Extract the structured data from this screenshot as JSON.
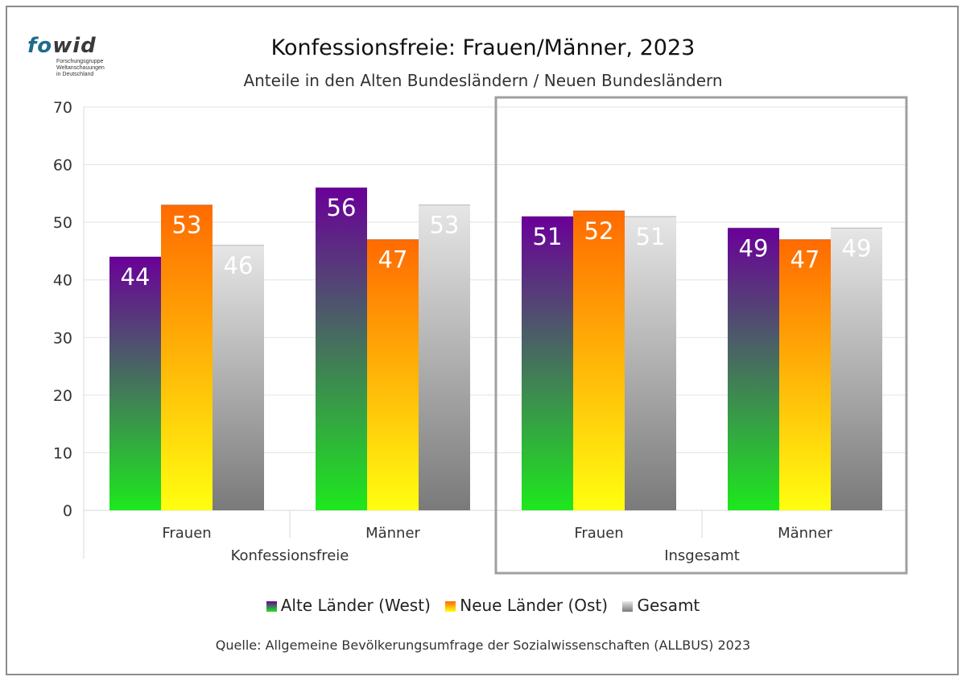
{
  "logo": {
    "word_a": "fo",
    "word_b": "wid",
    "sub_lines": [
      "Forschungsgruppe",
      "Weltanschauungen",
      "in Deutschland"
    ]
  },
  "colors": {
    "west_top": "#6a0099",
    "west_bottom": "#1ee81e",
    "ost_top": "#ff6a00",
    "ost_bottom": "#ffff10",
    "gesamt_top": "#e6e6e6",
    "gesamt_bottom": "#7a7a7a",
    "grid": "#e3e3e3",
    "box": "#a0a0a0"
  },
  "chart_data": {
    "type": "bar",
    "title": "Konfessionsfreie: Frauen/Männer, 2023",
    "subtitle": "Anteile in den Alten Bundesländern / Neuen Bundesländern",
    "ylim": [
      0,
      70
    ],
    "yticks": [
      0,
      10,
      20,
      30,
      40,
      50,
      60,
      70
    ],
    "groups": [
      "Konfessionsfreie",
      "Insgesamt"
    ],
    "categories": [
      "Frauen",
      "Männer",
      "Frauen",
      "Männer"
    ],
    "category_group": [
      0,
      0,
      1,
      1
    ],
    "series": [
      {
        "name": "Alte Länder (West)",
        "values": [
          44,
          56,
          51,
          49
        ]
      },
      {
        "name": "Neue Länder (Ost)",
        "values": [
          53,
          47,
          52,
          47
        ]
      },
      {
        "name": "Gesamt",
        "values": [
          46,
          53,
          51,
          49
        ]
      }
    ],
    "grid": true,
    "legend_position": "bottom",
    "highlight_group": "Insgesamt"
  },
  "source": "Quelle: Allgemeine Bevölkerungsumfrage der Sozialwissenschaften (ALLBUS) 2023"
}
